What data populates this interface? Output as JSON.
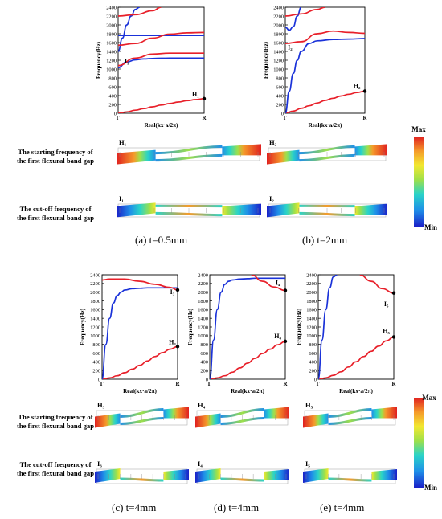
{
  "colors": {
    "band_red": "#e8202a",
    "band_blue": "#1a32d9",
    "colorbar": [
      "#1a20c8",
      "#1f8fe8",
      "#2ad3c8",
      "#9ee04a",
      "#f2e830",
      "#f59a2a",
      "#e02020"
    ]
  },
  "labels": {
    "row_start": [
      "The starting frequency of",
      "the first flexural band gap"
    ],
    "row_cutoff": [
      "The cut-off frequency of",
      "the first flexural band gap"
    ],
    "colorbar_max": "Max",
    "colorbar_min": "Min"
  },
  "captions": [
    "(a) t=0.5mm",
    "(b) t=2mm",
    "(c) t=4mm",
    "(d) t=4mm",
    "(e) t=4mm"
  ],
  "chart_data": [
    {
      "type": "line",
      "xlabel": "Real(kx·a/2π)",
      "ylabel": "Frequency(Hz)",
      "x_ticks": [
        "Γ",
        "R"
      ],
      "ylim": [
        0,
        2400
      ],
      "y_ticks": [
        0,
        200,
        400,
        600,
        800,
        1000,
        1200,
        1400,
        1600,
        1800,
        2000,
        2200,
        2400
      ],
      "series": [
        {
          "color": "red",
          "x": [
            0,
            0.1,
            0.2,
            0.3,
            0.4,
            0.5,
            0.6,
            0.7,
            0.8,
            0.9,
            1.0
          ],
          "y": [
            0,
            30,
            70,
            105,
            145,
            185,
            220,
            255,
            285,
            310,
            330
          ]
        },
        {
          "color": "blue",
          "x": [
            0,
            0.1,
            0.2,
            0.3,
            0.4,
            0.5,
            0.6,
            1.0
          ],
          "y": [
            1030,
            1160,
            1210,
            1230,
            1240,
            1245,
            1248,
            1250
          ]
        },
        {
          "color": "red",
          "x": [
            0,
            0.2,
            0.4,
            0.6,
            0.8,
            1.0
          ],
          "y": [
            1080,
            1250,
            1340,
            1360,
            1360,
            1360
          ]
        },
        {
          "color": "blue",
          "x": [
            0,
            0.05,
            0.1,
            0.15,
            0.2,
            0.25
          ],
          "y": [
            1400,
            1700,
            2000,
            2200,
            2350,
            2400
          ]
        },
        {
          "color": "blue",
          "x": [
            0,
            1.0
          ],
          "y": [
            1760,
            1760
          ]
        },
        {
          "color": "red",
          "x": [
            0,
            0.2,
            0.4,
            0.6,
            0.8,
            1.0
          ],
          "y": [
            1540,
            1580,
            1700,
            1790,
            1820,
            1830
          ]
        },
        {
          "color": "red",
          "x": [
            0,
            0.2,
            0.4,
            0.5
          ],
          "y": [
            2200,
            2230,
            2320,
            2400
          ]
        }
      ],
      "annotations": [
        {
          "text": "I₁",
          "x": 0.1,
          "y": 1130
        },
        {
          "text": "H₁",
          "x": 0.9,
          "y": 380
        }
      ],
      "markers": [
        {
          "x": 1.0,
          "y": 330
        }
      ]
    },
    {
      "type": "line",
      "xlabel": "Real(kx·a/2π)",
      "ylabel": "Frequency(Hz)",
      "x_ticks": [
        "Γ",
        "R"
      ],
      "ylim": [
        0,
        2400
      ],
      "y_ticks": [
        0,
        200,
        400,
        600,
        800,
        1000,
        1200,
        1400,
        1600,
        1800,
        2000,
        2200,
        2400
      ],
      "series": [
        {
          "color": "red",
          "x": [
            0,
            0.1,
            0.2,
            0.3,
            0.4,
            0.5,
            0.6,
            0.7,
            0.8,
            0.9,
            1.0
          ],
          "y": [
            0,
            50,
            110,
            170,
            230,
            290,
            340,
            390,
            430,
            470,
            500
          ]
        },
        {
          "color": "blue",
          "x": [
            0,
            0.05,
            0.1,
            0.15,
            0.2,
            0.3,
            0.4,
            0.6,
            0.8,
            1.0
          ],
          "y": [
            0,
            500,
            900,
            1200,
            1400,
            1580,
            1640,
            1670,
            1680,
            1690
          ]
        },
        {
          "color": "red",
          "x": [
            0,
            0.2,
            0.4,
            0.6,
            0.8,
            1.0
          ],
          "y": [
            1580,
            1620,
            1800,
            1860,
            1830,
            1810
          ]
        },
        {
          "color": "blue",
          "x": [
            0,
            0.05,
            0.1,
            0.15,
            0.2
          ],
          "y": [
            1950,
            1880,
            1960,
            2200,
            2400
          ]
        },
        {
          "color": "red",
          "x": [
            0,
            0.2,
            0.4,
            0.5
          ],
          "y": [
            2200,
            2250,
            2350,
            2400
          ]
        }
      ],
      "annotations": [
        {
          "text": "I₂",
          "x": 0.06,
          "y": 1450
        },
        {
          "text": "H₂",
          "x": 0.9,
          "y": 570
        }
      ],
      "markers": [
        {
          "x": 1.0,
          "y": 500
        }
      ]
    },
    {
      "type": "line",
      "xlabel": "Real(kx·a/2π)",
      "ylabel": "Frequency(Hz)",
      "x_ticks": [
        "Γ",
        "R"
      ],
      "ylim": [
        0,
        2400
      ],
      "y_ticks": [
        0,
        200,
        400,
        600,
        800,
        1000,
        1200,
        1400,
        1600,
        1800,
        2000,
        2200,
        2400
      ],
      "series": [
        {
          "color": "red",
          "x": [
            0,
            0.1,
            0.2,
            0.3,
            0.4,
            0.5,
            0.6,
            0.7,
            0.8,
            0.9,
            1.0
          ],
          "y": [
            0,
            30,
            80,
            150,
            230,
            320,
            420,
            520,
            610,
            690,
            750
          ]
        },
        {
          "color": "blue",
          "x": [
            0,
            0.05,
            0.1,
            0.15,
            0.2,
            0.25,
            0.3,
            0.4,
            0.5,
            0.6,
            0.8,
            1.0
          ],
          "y": [
            0,
            800,
            1400,
            1750,
            1920,
            2000,
            2050,
            2080,
            2090,
            2100,
            2100,
            2100
          ]
        },
        {
          "color": "red",
          "x": [
            0,
            0.1,
            0.3,
            0.5,
            0.7,
            0.9,
            1.0
          ],
          "y": [
            2280,
            2300,
            2300,
            2250,
            2180,
            2110,
            2050
          ]
        }
      ],
      "annotations": [
        {
          "text": "I₃",
          "x": 0.93,
          "y": 1960
        },
        {
          "text": "H₃",
          "x": 0.93,
          "y": 800
        }
      ],
      "markers": [
        {
          "x": 1.0,
          "y": 2050
        },
        {
          "x": 1.0,
          "y": 750
        }
      ]
    },
    {
      "type": "line",
      "xlabel": "Real(kx·a/2π)",
      "ylabel": "Frequency(Hz)",
      "x_ticks": [
        "Γ",
        "R"
      ],
      "ylim": [
        0,
        2400
      ],
      "y_ticks": [
        0,
        200,
        400,
        600,
        800,
        1000,
        1200,
        1400,
        1600,
        1800,
        2000,
        2200,
        2400
      ],
      "series": [
        {
          "color": "red",
          "x": [
            0,
            0.1,
            0.2,
            0.3,
            0.4,
            0.5,
            0.6,
            0.7,
            0.8,
            0.9,
            1.0
          ],
          "y": [
            0,
            30,
            80,
            160,
            260,
            370,
            480,
            590,
            690,
            790,
            870
          ]
        },
        {
          "color": "blue",
          "x": [
            0,
            0.05,
            0.1,
            0.15,
            0.2,
            0.25,
            0.3,
            0.4,
            0.5,
            0.6,
            0.8,
            1.0
          ],
          "y": [
            0,
            900,
            1600,
            2000,
            2180,
            2250,
            2280,
            2300,
            2310,
            2320,
            2320,
            2320
          ]
        },
        {
          "color": "red",
          "x": [
            0.55,
            0.7,
            0.85,
            1.0
          ],
          "y": [
            2400,
            2250,
            2120,
            2040
          ]
        }
      ],
      "annotations": [
        {
          "text": "I₄",
          "x": 0.9,
          "y": 2170
        },
        {
          "text": "H₄",
          "x": 0.9,
          "y": 940
        }
      ],
      "markers": [
        {
          "x": 1.0,
          "y": 2040
        },
        {
          "x": 1.0,
          "y": 870
        }
      ]
    },
    {
      "type": "line",
      "xlabel": "Real(kx·a/2π)",
      "ylabel": "Frequency(Hz)",
      "x_ticks": [
        "Γ",
        "R"
      ],
      "ylim": [
        0,
        2400
      ],
      "y_ticks": [
        0,
        200,
        400,
        600,
        800,
        1000,
        1200,
        1400,
        1600,
        1800,
        2000,
        2200,
        2400
      ],
      "series": [
        {
          "color": "red",
          "x": [
            0,
            0.1,
            0.2,
            0.3,
            0.4,
            0.5,
            0.6,
            0.7,
            0.8,
            0.9,
            1.0
          ],
          "y": [
            0,
            30,
            90,
            170,
            280,
            400,
            520,
            640,
            760,
            880,
            970
          ]
        },
        {
          "color": "blue",
          "x": [
            0,
            0.05,
            0.1,
            0.15,
            0.2,
            0.25
          ],
          "y": [
            0,
            900,
            1600,
            2100,
            2350,
            2400
          ]
        },
        {
          "color": "red",
          "x": [
            0.55,
            0.7,
            0.85,
            1.0
          ],
          "y": [
            2400,
            2250,
            2080,
            1980
          ]
        }
      ],
      "annotations": [
        {
          "text": "I₅",
          "x": 0.9,
          "y": 1680
        },
        {
          "text": "H₅",
          "x": 0.9,
          "y": 1060
        }
      ],
      "markers": [
        {
          "x": 1.0,
          "y": 1980
        },
        {
          "x": 1.0,
          "y": 970
        }
      ]
    }
  ],
  "modes": [
    {
      "label": "H₁",
      "row": "start"
    },
    {
      "label": "H₂",
      "row": "start"
    },
    {
      "label": "H₃",
      "row": "start"
    },
    {
      "label": "H₄",
      "row": "start"
    },
    {
      "label": "H₅",
      "row": "start"
    },
    {
      "label": "I₁",
      "row": "cutoff"
    },
    {
      "label": "I₂",
      "row": "cutoff"
    },
    {
      "label": "I₃",
      "row": "cutoff"
    },
    {
      "label": "I₄",
      "row": "cutoff"
    },
    {
      "label": "I₅",
      "row": "cutoff"
    }
  ]
}
